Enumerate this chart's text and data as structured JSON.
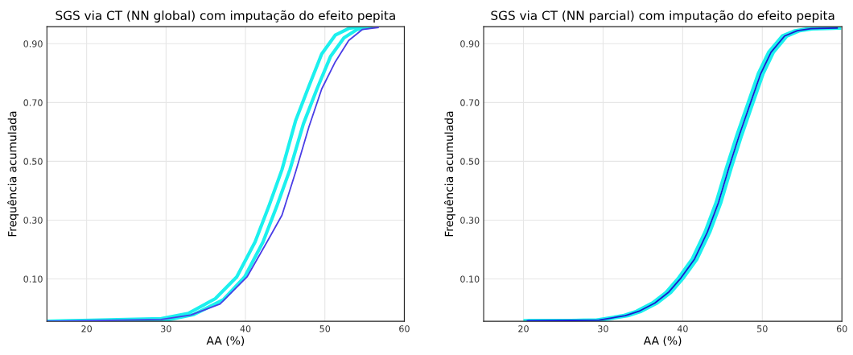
{
  "chart_data": [
    {
      "type": "line",
      "title": "SGS via CT (NN global) com imputação do efeito pepita",
      "xlabel": "AA (%)",
      "ylabel": "Frequência acumulada",
      "xlim": [
        15,
        60
      ],
      "ylim": [
        -0.044,
        0.958
      ],
      "xticks": [
        20,
        30,
        40,
        50,
        60
      ],
      "yticks": [
        {
          "value": 0.1,
          "label": "0.10"
        },
        {
          "value": 0.3,
          "label": "0.30"
        },
        {
          "value": 0.5,
          "label": "0.50"
        },
        {
          "value": 0.7,
          "label": "0.70"
        },
        {
          "value": 0.9,
          "label": "0.90"
        }
      ],
      "grid": true,
      "legend": false,
      "marker": "none",
      "line_style": "solid",
      "series": [
        {
          "color": "#1cf0ee",
          "x": [
            15,
            29.4,
            32.8,
            36.2,
            38.9,
            41.2,
            42.9,
            44.6,
            46.3,
            48.0,
            49.6,
            51.3,
            53.0,
            54.4
          ],
          "values": [
            -0.044,
            -0.035,
            -0.017,
            0.033,
            0.107,
            0.225,
            0.344,
            0.472,
            0.637,
            0.756,
            0.865,
            0.929,
            0.952,
            0.957
          ]
        },
        {
          "color": "#1cf0ee",
          "x": [
            15,
            30.1,
            33.5,
            37.2,
            39.9,
            42.2,
            43.9,
            45.6,
            47.3,
            49.0,
            50.7,
            52.4,
            54.1,
            55.8
          ],
          "values": [
            -0.044,
            -0.04,
            -0.021,
            0.029,
            0.107,
            0.225,
            0.344,
            0.472,
            0.628,
            0.746,
            0.856,
            0.92,
            0.949,
            0.957
          ]
        },
        {
          "color": "#4a3ee6",
          "x": [
            15,
            29.4,
            33.1,
            36.8,
            40.2,
            42.9,
            44.6,
            46.3,
            48.0,
            49.6,
            51.3,
            53.0,
            54.7,
            56.7
          ],
          "values": [
            -0.044,
            -0.038,
            -0.023,
            0.015,
            0.107,
            0.235,
            0.317,
            0.463,
            0.618,
            0.746,
            0.838,
            0.911,
            0.948,
            0.955
          ]
        }
      ]
    },
    {
      "type": "line",
      "title": "SGS via CT (NN parcial) com imputação do efeito pepita",
      "xlabel": "AA (%)",
      "ylabel": "Frequência acumulada",
      "xlim": [
        15,
        60
      ],
      "ylim": [
        -0.044,
        0.958
      ],
      "xticks": [
        20,
        30,
        40,
        50,
        60
      ],
      "yticks": [
        {
          "value": 0.1,
          "label": "0.10"
        },
        {
          "value": 0.3,
          "label": "0.30"
        },
        {
          "value": 0.5,
          "label": "0.50"
        },
        {
          "value": 0.7,
          "label": "0.70"
        },
        {
          "value": 0.9,
          "label": "0.90"
        }
      ],
      "grid": true,
      "legend": false,
      "marker": "none",
      "line_style": "solid",
      "series": [
        {
          "color": "#1cf0ee",
          "x": [
            20.2,
            25.9,
            29.2,
            32.5,
            34.2,
            36.2,
            37.9,
            39.5,
            41.2,
            42.8,
            44.2,
            45.5,
            46.8,
            48.2,
            49.5,
            50.8,
            52.5,
            54.1,
            55.8,
            59.1
          ],
          "values": [
            -0.042,
            -0.041,
            -0.04,
            -0.025,
            -0.01,
            0.018,
            0.054,
            0.104,
            0.168,
            0.259,
            0.36,
            0.478,
            0.588,
            0.697,
            0.798,
            0.871,
            0.926,
            0.944,
            0.951,
            0.953
          ]
        },
        {
          "color": "#1cf0ee",
          "x": [
            20.8,
            26.5,
            29.8,
            33.1,
            34.8,
            36.8,
            38.5,
            40.1,
            41.8,
            43.4,
            44.8,
            46.1,
            47.4,
            48.8,
            50.1,
            51.4,
            53.1,
            54.7,
            56.4,
            59.7
          ],
          "values": [
            -0.042,
            -0.041,
            -0.04,
            -0.025,
            -0.01,
            0.018,
            0.054,
            0.104,
            0.168,
            0.259,
            0.36,
            0.478,
            0.588,
            0.697,
            0.798,
            0.871,
            0.926,
            0.944,
            0.951,
            0.953
          ]
        },
        {
          "color": "#1a1ad0",
          "x": [
            20.5,
            26.2,
            29.5,
            32.8,
            34.5,
            36.5,
            38.2,
            39.8,
            41.5,
            43.1,
            44.5,
            45.8,
            47.1,
            48.5,
            49.8,
            51.1,
            52.8,
            54.4,
            56.1,
            59.4
          ],
          "values": [
            -0.042,
            -0.041,
            -0.04,
            -0.025,
            -0.01,
            0.018,
            0.054,
            0.104,
            0.168,
            0.259,
            0.36,
            0.478,
            0.588,
            0.697,
            0.798,
            0.871,
            0.926,
            0.944,
            0.951,
            0.953
          ]
        }
      ]
    }
  ]
}
